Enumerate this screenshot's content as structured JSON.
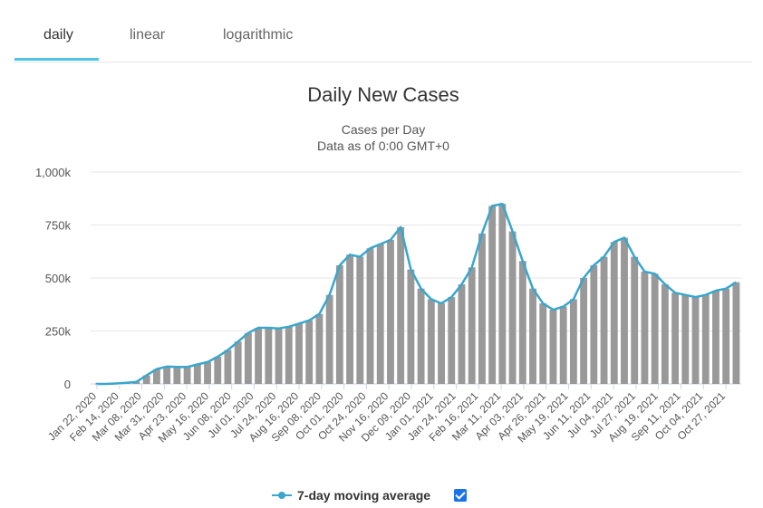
{
  "tabs": [
    {
      "label": "daily",
      "active": true
    },
    {
      "label": "linear",
      "active": false
    },
    {
      "label": "logarithmic",
      "active": false
    }
  ],
  "legend": {
    "label": "7-day moving average",
    "checked": true
  },
  "colors": {
    "bars": "#999999",
    "line": "#3aa6cc",
    "tab_accent": "#4fc3e8",
    "checkbox": "#1a73e8"
  },
  "chart_data": {
    "type": "bar",
    "title": "Daily New Cases",
    "subtitle_lines": [
      "Cases per Day",
      "Data as of 0:00 GMT+0"
    ],
    "xlabel": "",
    "ylabel": "",
    "ylim": [
      0,
      1000000
    ],
    "y_ticks": [
      {
        "value": 0,
        "label": "0"
      },
      {
        "value": 250000,
        "label": "250k"
      },
      {
        "value": 500000,
        "label": "500k"
      },
      {
        "value": 750000,
        "label": "750k"
      },
      {
        "value": 1000000,
        "label": "1,000k"
      }
    ],
    "x_ticks": [
      "Jan 22, 2020",
      "Feb 14, 2020",
      "Mar 08, 2020",
      "Mar 31, 2020",
      "Apr 23, 2020",
      "May 16, 2020",
      "Jun 08, 2020",
      "Jul 01, 2020",
      "Jul 24, 2020",
      "Aug 16, 2020",
      "Sep 08, 2020",
      "Oct 01, 2020",
      "Oct 24, 2020",
      "Nov 16, 2020",
      "Dec 09, 2020",
      "Jan 01, 2021",
      "Jan 24, 2021",
      "Feb 16, 2021",
      "Mar 11, 2021",
      "Apr 03, 2021",
      "Apr 26, 2021",
      "May 19, 2021",
      "Jun 11, 2021",
      "Jul 04, 2021",
      "Jul 27, 2021",
      "Aug 19, 2021",
      "Sep 11, 2021",
      "Oct 04, 2021",
      "Oct 27, 2021"
    ],
    "grid": true,
    "legend_position": "bottom-center",
    "series": [
      {
        "kind": "bar",
        "values": [
          0,
          0,
          2000,
          5000,
          10000,
          40000,
          70000,
          82000,
          80000,
          80000,
          92000,
          103000,
          128000,
          160000,
          200000,
          240000,
          265000,
          265000,
          262000,
          270000,
          285000,
          300000,
          330000,
          420000,
          560000,
          610000,
          600000,
          640000,
          660000,
          680000,
          740000,
          540000,
          450000,
          400000,
          380000,
          410000,
          470000,
          550000,
          710000,
          840000,
          850000,
          720000,
          580000,
          450000,
          380000,
          350000,
          365000,
          400000,
          500000,
          560000,
          600000,
          670000,
          690000,
          600000,
          530000,
          520000,
          470000,
          430000,
          420000,
          410000,
          420000,
          440000,
          450000,
          480000
        ]
      },
      {
        "kind": "line",
        "name": "7-day moving average",
        "values": [
          0,
          0,
          2000,
          5000,
          10000,
          40000,
          70000,
          82000,
          80000,
          80000,
          92000,
          103000,
          128000,
          160000,
          200000,
          240000,
          265000,
          265000,
          262000,
          270000,
          285000,
          300000,
          330000,
          420000,
          560000,
          610000,
          600000,
          640000,
          660000,
          680000,
          740000,
          540000,
          450000,
          400000,
          380000,
          410000,
          470000,
          550000,
          710000,
          840000,
          850000,
          720000,
          580000,
          450000,
          380000,
          350000,
          365000,
          400000,
          500000,
          560000,
          600000,
          670000,
          690000,
          600000,
          530000,
          520000,
          470000,
          430000,
          420000,
          410000,
          420000,
          440000,
          450000,
          480000
        ]
      }
    ]
  }
}
